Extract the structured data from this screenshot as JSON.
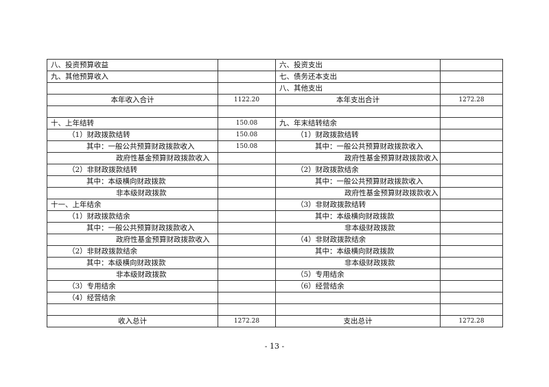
{
  "table": {
    "rows": [
      {
        "left": "八、投资预算收益",
        "left_value": "",
        "right": "六、投资支出",
        "right_value": ""
      },
      {
        "left": "九、其他预算收入",
        "left_value": "",
        "right": "七、债务还本支出",
        "right_value": ""
      },
      {
        "left": "",
        "left_value": "",
        "right": "八、其他支出",
        "right_value": ""
      },
      {
        "left": "本年收入合计",
        "left_value": "1122.20",
        "right": "本年支出合计",
        "right_value": "1272.28"
      },
      {
        "left": "",
        "left_value": "",
        "right": "",
        "right_value": ""
      },
      {
        "left": "十、上年结转",
        "left_value": "150.08",
        "right": "九、年末结转结余",
        "right_value": ""
      },
      {
        "left": "（1）财政拨款结转",
        "left_value": "150.08",
        "right": "（1）财政拨款结转",
        "right_value": ""
      },
      {
        "left": "其中：一般公共预算财政拨款收入",
        "left_value": "150.08",
        "right": "其中：一般公共预算财政拨款收入",
        "right_value": ""
      },
      {
        "left": "政府性基金预算财政拨款收入",
        "left_value": "",
        "right": "政府性基金预算财政拨款收入",
        "right_value": ""
      },
      {
        "left": "（2）非财政拨款结转",
        "left_value": "",
        "right": "（2）财政拨款结余",
        "right_value": ""
      },
      {
        "left": "其中：本级横向财政拨款",
        "left_value": "",
        "right": "其中：一般公共预算财政拨款收入",
        "right_value": ""
      },
      {
        "left": "非本级财政拨款",
        "left_value": "",
        "right": "政府性基金预算财政拨款收入",
        "right_value": ""
      },
      {
        "left": "十一、上年结余",
        "left_value": "",
        "right": "（3）非财政拨款结转",
        "right_value": ""
      },
      {
        "left": "（1）财政拨款结余",
        "left_value": "",
        "right": "其中：本级横向财政拨款",
        "right_value": ""
      },
      {
        "left": "其中：一般公共预算财政拨款收入",
        "left_value": "",
        "right": "非本级财政拨款",
        "right_value": ""
      },
      {
        "left": "政府性基金预算财政拨款收入",
        "left_value": "",
        "right": "（4）非财政拨款结余",
        "right_value": ""
      },
      {
        "left": "（2）非财政拨款结余",
        "left_value": "",
        "right": "其中：本级横向财政拨款",
        "right_value": ""
      },
      {
        "left": "其中：本级横向财政拨款",
        "left_value": "",
        "right": "非本级财政拨款",
        "right_value": ""
      },
      {
        "left": "非本级财政拨款",
        "left_value": "",
        "right": "（5）专用结余",
        "right_value": ""
      },
      {
        "left": "（3）专用结余",
        "left_value": "",
        "right": "（6）经营结余",
        "right_value": ""
      },
      {
        "left": "（4）经营结余",
        "left_value": "",
        "right": "",
        "right_value": ""
      },
      {
        "left": "",
        "left_value": "",
        "right": "",
        "right_value": ""
      },
      {
        "left": "收入总计",
        "left_value": "1272.28",
        "right": "支出总计",
        "right_value": "1272.28"
      }
    ]
  },
  "footer": {
    "page_number": "- 13 -"
  }
}
